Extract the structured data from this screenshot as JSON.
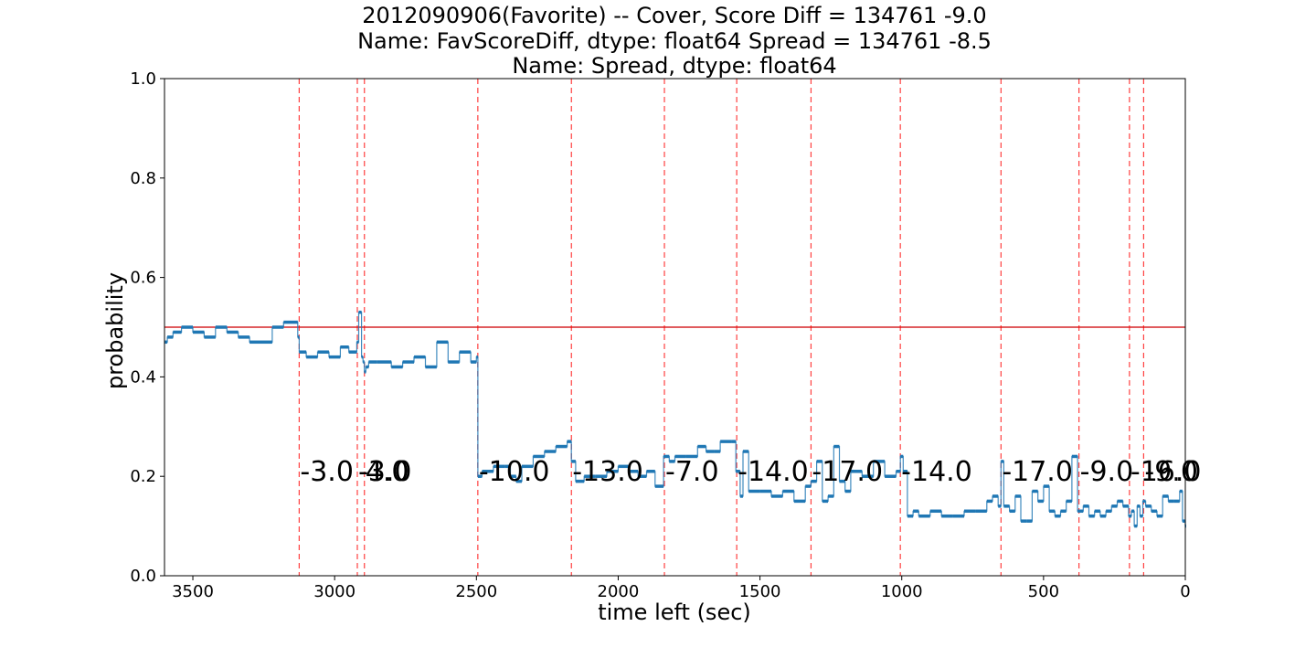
{
  "chart_data": {
    "type": "line",
    "title_lines": [
      "2012090906(Favorite) -- Cover, Score Diff = 134761   -9.0",
      "Name: FavScoreDiff, dtype: float64 Spread = 134761   -8.5",
      "Name: Spread, dtype: float64"
    ],
    "xlabel": "time left (sec)",
    "ylabel": "probability",
    "xlim": [
      3600,
      0
    ],
    "ylim": [
      0.0,
      1.0
    ],
    "xticks": [
      3500,
      3000,
      2500,
      2000,
      1500,
      1000,
      500,
      0
    ],
    "yticks": [
      0.0,
      0.2,
      0.4,
      0.6,
      0.8,
      1.0
    ],
    "grid": false,
    "reference_line": {
      "y": 0.5,
      "color": "#d62728"
    },
    "series_color": "#1f77b4",
    "series": [
      {
        "x": [
          3600,
          3590,
          3570,
          3540,
          3500,
          3460,
          3420,
          3380,
          3340,
          3300,
          3260,
          3220,
          3180,
          3130,
          3125,
          3100,
          3060,
          3020,
          2980,
          2950,
          2922,
          2915,
          2905,
          2900,
          2895,
          2890,
          2880,
          2850,
          2800,
          2760,
          2720,
          2680,
          2640,
          2600,
          2560,
          2520,
          2500,
          2495,
          2480,
          2440,
          2400,
          2380,
          2360,
          2340,
          2300,
          2260,
          2220,
          2180,
          2165,
          2150,
          2120,
          2080,
          2040,
          2000,
          1960,
          1930,
          1900,
          1870,
          1840,
          1820,
          1800,
          1760,
          1720,
          1690,
          1660,
          1640,
          1600,
          1585,
          1570,
          1560,
          1540,
          1500,
          1460,
          1420,
          1380,
          1340,
          1320,
          1300,
          1280,
          1260,
          1240,
          1220,
          1200,
          1180,
          1140,
          1100,
          1060,
          1020,
          1005,
          995,
          980,
          960,
          940,
          900,
          860,
          820,
          780,
          740,
          700,
          680,
          660,
          650,
          640,
          620,
          600,
          580,
          560,
          540,
          520,
          500,
          480,
          460,
          440,
          420,
          400,
          380,
          360,
          340,
          320,
          300,
          280,
          260,
          240,
          220,
          200,
          190,
          180,
          170,
          160,
          150,
          140,
          120,
          100,
          80,
          60,
          40,
          20,
          10,
          0
        ],
        "values": [
          0.47,
          0.48,
          0.49,
          0.5,
          0.49,
          0.48,
          0.5,
          0.49,
          0.48,
          0.47,
          0.47,
          0.5,
          0.51,
          0.48,
          0.45,
          0.44,
          0.45,
          0.44,
          0.46,
          0.45,
          0.47,
          0.53,
          0.44,
          0.43,
          0.41,
          0.42,
          0.43,
          0.43,
          0.42,
          0.43,
          0.44,
          0.42,
          0.47,
          0.43,
          0.45,
          0.43,
          0.44,
          0.2,
          0.21,
          0.22,
          0.22,
          0.2,
          0.19,
          0.22,
          0.24,
          0.25,
          0.26,
          0.27,
          0.23,
          0.19,
          0.2,
          0.2,
          0.21,
          0.22,
          0.21,
          0.2,
          0.21,
          0.18,
          0.24,
          0.23,
          0.24,
          0.24,
          0.26,
          0.25,
          0.25,
          0.27,
          0.27,
          0.21,
          0.16,
          0.25,
          0.17,
          0.17,
          0.16,
          0.17,
          0.15,
          0.18,
          0.19,
          0.23,
          0.15,
          0.16,
          0.26,
          0.19,
          0.17,
          0.21,
          0.2,
          0.23,
          0.2,
          0.21,
          0.24,
          0.21,
          0.12,
          0.13,
          0.12,
          0.13,
          0.12,
          0.12,
          0.13,
          0.13,
          0.15,
          0.16,
          0.14,
          0.23,
          0.14,
          0.13,
          0.16,
          0.11,
          0.11,
          0.17,
          0.15,
          0.18,
          0.13,
          0.12,
          0.13,
          0.15,
          0.24,
          0.13,
          0.14,
          0.12,
          0.13,
          0.12,
          0.13,
          0.14,
          0.15,
          0.14,
          0.12,
          0.13,
          0.1,
          0.14,
          0.12,
          0.15,
          0.14,
          0.13,
          0.12,
          0.16,
          0.15,
          0.15,
          0.17,
          0.11,
          0.1
        ]
      }
    ],
    "vlines": [
      {
        "x": 3125,
        "label": "-3.0"
      },
      {
        "x": 2920,
        "label": "-3.0"
      },
      {
        "x": 2895,
        "label": "4.0"
      },
      {
        "x": 2495,
        "label": "-10.0"
      },
      {
        "x": 2165,
        "label": "-13.0"
      },
      {
        "x": 1837,
        "label": "-7.0"
      },
      {
        "x": 1582,
        "label": "-14.0"
      },
      {
        "x": 1320,
        "label": "-17.0"
      },
      {
        "x": 1005,
        "label": "-14.0"
      },
      {
        "x": 650,
        "label": "-17.0"
      },
      {
        "x": 375,
        "label": "-9.0"
      },
      {
        "x": 197,
        "label": "-16.0"
      },
      {
        "x": 147,
        "label": "-9.0"
      }
    ],
    "annotation_y": 0.21,
    "vline_color": "#ff0000"
  }
}
